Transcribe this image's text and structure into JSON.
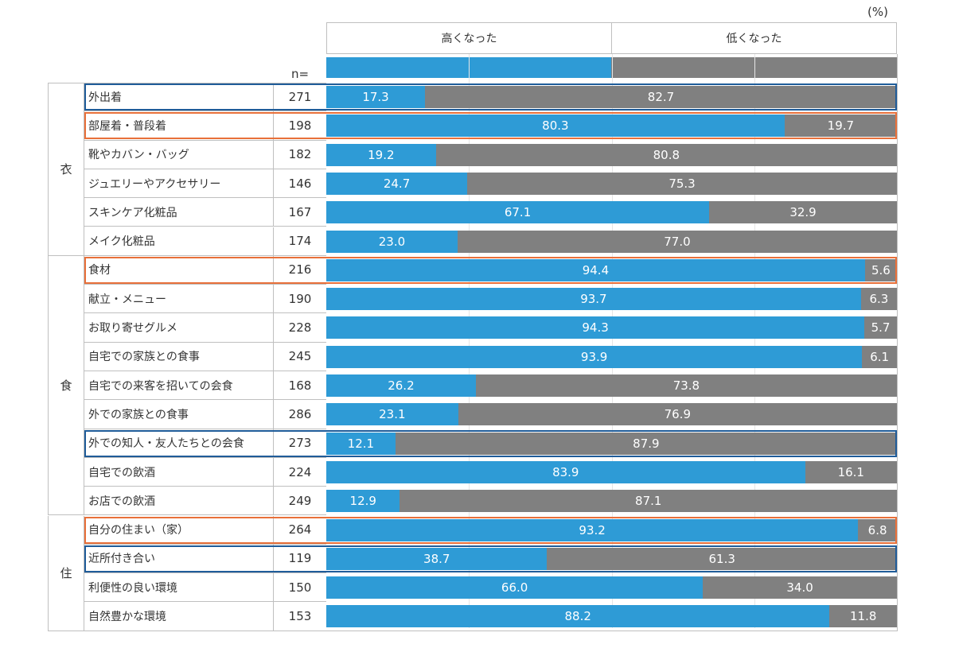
{
  "header": {
    "unit": "(%)",
    "n_label": "n="
  },
  "legend": {
    "high_label": "高くなった",
    "low_label": "低くなった"
  },
  "colors": {
    "high": "#2E9BD6",
    "low": "#808080",
    "highlight_orange": "#E8703A",
    "highlight_blue": "#1F5C99",
    "border": "#BFBFBF"
  },
  "categories": [
    {
      "name": "衣",
      "rows": 6
    },
    {
      "name": "食",
      "rows": 9
    },
    {
      "name": "住",
      "rows": 4
    }
  ],
  "chart_data": {
    "type": "bar",
    "stacked": true,
    "orientation": "horizontal",
    "series": [
      {
        "name": "高くなった",
        "values": [
          17.3,
          80.3,
          19.2,
          24.7,
          67.1,
          23.0,
          94.4,
          93.7,
          94.3,
          93.9,
          26.2,
          23.1,
          12.1,
          83.9,
          12.9,
          93.2,
          38.7,
          66.0,
          88.2
        ]
      },
      {
        "name": "低くなった",
        "values": [
          82.7,
          19.7,
          80.8,
          75.3,
          32.9,
          77.0,
          5.6,
          6.3,
          5.7,
          6.1,
          73.8,
          76.9,
          87.9,
          16.1,
          87.1,
          6.8,
          61.3,
          34.0,
          11.8
        ]
      }
    ],
    "categories": [
      "外出着",
      "部屋着・普段着",
      "靴やカバン・バッグ",
      "ジュエリーやアクセサリー",
      "スキンケア化粧品",
      "メイク化粧品",
      "食材",
      "献立・メニュー",
      "お取り寄せグルメ",
      "自宅での家族との食事",
      "自宅での来客を招いての会食",
      "外での家族との食事",
      "外での知人・友人たちとの会食",
      "自宅での飲酒",
      "お店での飲酒",
      "自分の住まい（家）",
      "近所付き合い",
      "利便性の良い環境",
      "自然豊かな環境"
    ],
    "n": [
      "271",
      "198",
      "182",
      "146",
      "167",
      "174",
      "216",
      "190",
      "228",
      "245",
      "168",
      "286",
      "273",
      "224",
      "249",
      "264",
      "119",
      "150",
      "153"
    ],
    "highlight": [
      "blue",
      "orange",
      "",
      "",
      "",
      "",
      "orange",
      "",
      "",
      "",
      "",
      "",
      "blue",
      "",
      "",
      "orange",
      "blue",
      "",
      ""
    ],
    "xlim": [
      0,
      100
    ],
    "legend_position": "top",
    "grid": true
  }
}
